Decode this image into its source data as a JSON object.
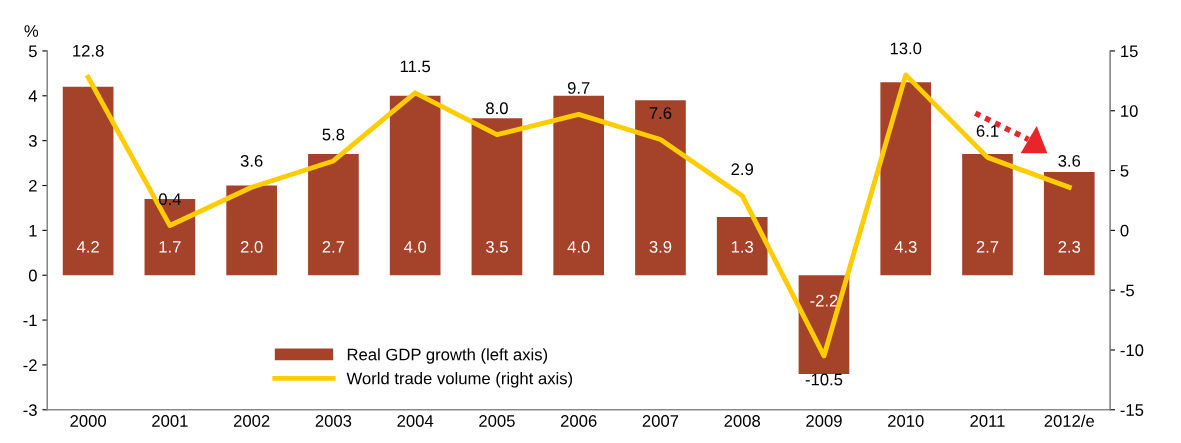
{
  "chart_data": {
    "type": "bar",
    "ylabel": "%",
    "categories": [
      "2000",
      "2001",
      "2002",
      "2003",
      "2004",
      "2005",
      "2006",
      "2007",
      "2008",
      "2009",
      "2010",
      "2011",
      "2012/e"
    ],
    "series": [
      {
        "name": "Real GDP growth (left axis)",
        "color": "#a5432a",
        "values": [
          4.2,
          1.7,
          2.0,
          2.7,
          4.0,
          3.5,
          4.0,
          3.9,
          1.3,
          -2.2,
          4.3,
          2.7,
          2.3
        ],
        "value_labels": [
          "4.2",
          "1.7",
          "2.0",
          "2.7",
          "4.0",
          "3.5",
          "4.0",
          "3.9",
          "1.3",
          "-2.2",
          "4.3",
          "2.7",
          "2.3"
        ]
      },
      {
        "name": "World trade volume (right axis)",
        "type": "line",
        "axis": "y2",
        "color": "#ffcc00",
        "values": [
          12.8,
          0.4,
          3.6,
          5.8,
          11.5,
          8.0,
          9.7,
          7.6,
          2.9,
          -10.5,
          13.0,
          6.1,
          3.6
        ],
        "value_labels": [
          "12.8",
          "0.4",
          "3.6",
          "5.8",
          "11.5",
          "8.0",
          "9.7",
          "7.6",
          "2.9",
          "-10.5",
          "13.0",
          "6.1",
          "3.6"
        ]
      }
    ],
    "ylim": [
      -3,
      5
    ],
    "yticks": [
      -3,
      -2,
      -1,
      0,
      1,
      2,
      3,
      4,
      5
    ],
    "y2lim": [
      -15,
      15
    ],
    "y2ticks": [
      -15,
      -10,
      -5,
      0,
      5,
      10,
      15
    ],
    "grid": false,
    "legend": "bottom",
    "marker": "none",
    "line_style": "solid"
  }
}
